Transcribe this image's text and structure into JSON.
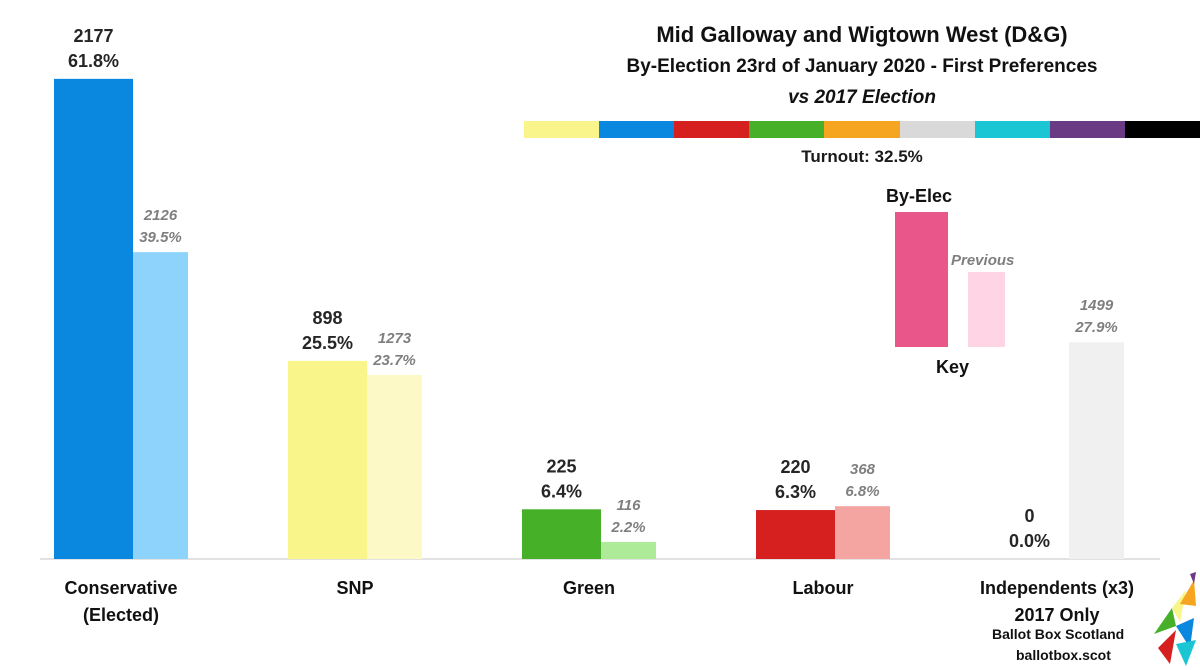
{
  "header": {
    "title": "Mid Galloway and Wigtown West (D&G)",
    "subtitle": "By-Election 23rd of January 2020 - First Preferences",
    "comparison": "vs 2017 Election",
    "turnout": "Turnout: 32.5%"
  },
  "palette": [
    "#f9f58a",
    "#0a87de",
    "#d62020",
    "#46b029",
    "#f5a51f",
    "#d9d9d9",
    "#1ac6d3",
    "#6a3a85",
    "#000000"
  ],
  "key": {
    "title": "Key",
    "by_election_label": "By-Elec",
    "previous_label": "Previous",
    "by_election_color": "#e8568a",
    "previous_color": "#ffd5e6"
  },
  "branding": {
    "name": "Ballot Box Scotland",
    "url": "ballotbox.scot"
  },
  "chart_data": {
    "type": "bar",
    "categories": [
      "Conservative (Elected)",
      "SNP",
      "Green",
      "Labour",
      "Independents (x3) 2017 Only"
    ],
    "category_lines": [
      [
        "Conservative",
        "(Elected)"
      ],
      [
        "SNP"
      ],
      [
        "Green"
      ],
      [
        "Labour"
      ],
      [
        "Independents (x3)",
        "2017 Only"
      ]
    ],
    "percent_max": 65,
    "series": [
      {
        "name": "By-Elec",
        "votes": [
          2177,
          898,
          225,
          220,
          0
        ],
        "vote_labels": [
          "2177",
          "898",
          "225",
          "220",
          "0"
        ],
        "values": [
          61.8,
          25.5,
          6.4,
          6.3,
          0.0
        ],
        "value_labels": [
          "61.8%",
          "25.5%",
          "6.4%",
          "6.3%",
          "0.0%"
        ],
        "colors": [
          "#0a87de",
          "#f9f58a",
          "#46b029",
          "#d62020",
          "#f0f0f0"
        ]
      },
      {
        "name": "Previous",
        "votes": [
          2126,
          1273,
          116,
          368,
          1499
        ],
        "vote_labels": [
          "2126",
          "1273",
          "116",
          "368",
          "1499"
        ],
        "values": [
          39.5,
          23.7,
          2.2,
          6.8,
          27.9
        ],
        "value_labels": [
          "39.5%",
          "23.7%",
          "2.2%",
          "6.8%",
          "27.9%"
        ],
        "colors": [
          "#8ed3fb",
          "#fdf9c7",
          "#aeeb98",
          "#f4a5a2",
          "#f0f0f0"
        ]
      }
    ]
  }
}
